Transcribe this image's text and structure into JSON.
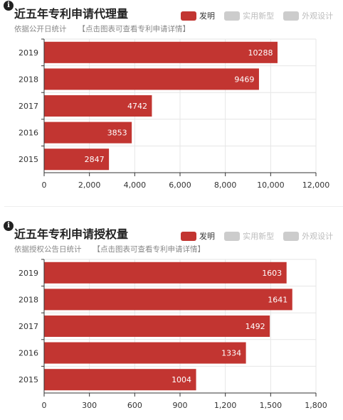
{
  "colors": {
    "bar": "#c23531",
    "legend_inactive": "#cccccc",
    "grid": "#e6e6e6",
    "axis": "#333333"
  },
  "panels": [
    {
      "title": "近五年专利申请代理量",
      "subtitle": "依据公开日统计",
      "hint": "【点击图表可查看专利申请详情】",
      "legend": [
        {
          "label": "发明",
          "active": true
        },
        {
          "label": "实用新型",
          "active": false
        },
        {
          "label": "外观设计",
          "active": false
        }
      ]
    },
    {
      "title": "近五年专利申请授权量",
      "subtitle": "依据授权公告日统计",
      "hint": "【点击图表可查看专利申请详情】",
      "legend": [
        {
          "label": "发明",
          "active": true
        },
        {
          "label": "实用新型",
          "active": false
        },
        {
          "label": "外观设计",
          "active": false
        }
      ]
    }
  ],
  "chart_data": [
    {
      "type": "bar",
      "orientation": "horizontal",
      "categories": [
        "2019",
        "2018",
        "2017",
        "2016",
        "2015"
      ],
      "series": [
        {
          "name": "发明",
          "values": [
            10288,
            9469,
            4742,
            3853,
            2847
          ]
        }
      ],
      "xlim": [
        0,
        12000
      ],
      "xticks": [
        0,
        2000,
        4000,
        6000,
        8000,
        10000,
        12000
      ],
      "xtick_labels": [
        "0",
        "2,000",
        "4,000",
        "6,000",
        "8,000",
        "10,000",
        "12,000"
      ],
      "grid": true,
      "legend_position": "top-right"
    },
    {
      "type": "bar",
      "orientation": "horizontal",
      "categories": [
        "2019",
        "2018",
        "2017",
        "2016",
        "2015"
      ],
      "series": [
        {
          "name": "发明",
          "values": [
            1603,
            1641,
            1492,
            1334,
            1004
          ]
        }
      ],
      "xlim": [
        0,
        1800
      ],
      "xticks": [
        0,
        300,
        600,
        900,
        1200,
        1500,
        1800
      ],
      "xtick_labels": [
        "0",
        "300",
        "600",
        "900",
        "1,200",
        "1,500",
        "1,800"
      ],
      "grid": true,
      "legend_position": "top-right"
    }
  ]
}
